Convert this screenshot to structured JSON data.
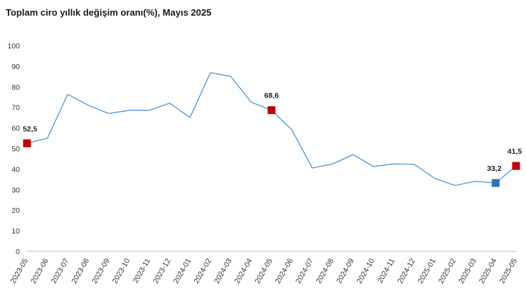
{
  "chart_data": {
    "type": "line",
    "title": "Toplam ciro yıllık değişim oranı(%), Mayıs 2025",
    "xlabel": "",
    "ylabel": "",
    "ylim": [
      0,
      100
    ],
    "yticks": [
      0,
      10,
      20,
      30,
      40,
      50,
      60,
      70,
      80,
      90,
      100
    ],
    "grid": false,
    "legend": "none",
    "line_color": "#5b9bd5",
    "categories": [
      "2023-05",
      "2023-06",
      "2023-07",
      "2023-08",
      "2023-09",
      "2023-10",
      "2023-11",
      "2023-12",
      "2024-01",
      "2024-02",
      "2024-03",
      "2024-04",
      "2024-05",
      "2024-06",
      "2024-07",
      "2024-08",
      "2024-09",
      "2024-10",
      "2024-11",
      "2024-12",
      "2025-01",
      "2025-02",
      "2025-03",
      "2025-04",
      "2025-05"
    ],
    "series": [
      {
        "values": [
          52.5,
          55.0,
          76.3,
          71.0,
          67.0,
          68.5,
          68.5,
          72.0,
          65.0,
          86.8,
          85.0,
          72.5,
          68.6,
          59.0,
          40.5,
          42.5,
          47.0,
          41.2,
          42.5,
          42.3,
          35.5,
          32.0,
          34.0,
          33.2,
          41.5
        ]
      }
    ],
    "highlights": [
      {
        "index": 0,
        "label": "52,5",
        "color": "#c00000"
      },
      {
        "index": 12,
        "label": "68,6",
        "color": "#c00000"
      },
      {
        "index": 23,
        "label": "33,2",
        "color": "#2e75b6"
      },
      {
        "index": 24,
        "label": "41,5",
        "color": "#c00000"
      }
    ]
  }
}
